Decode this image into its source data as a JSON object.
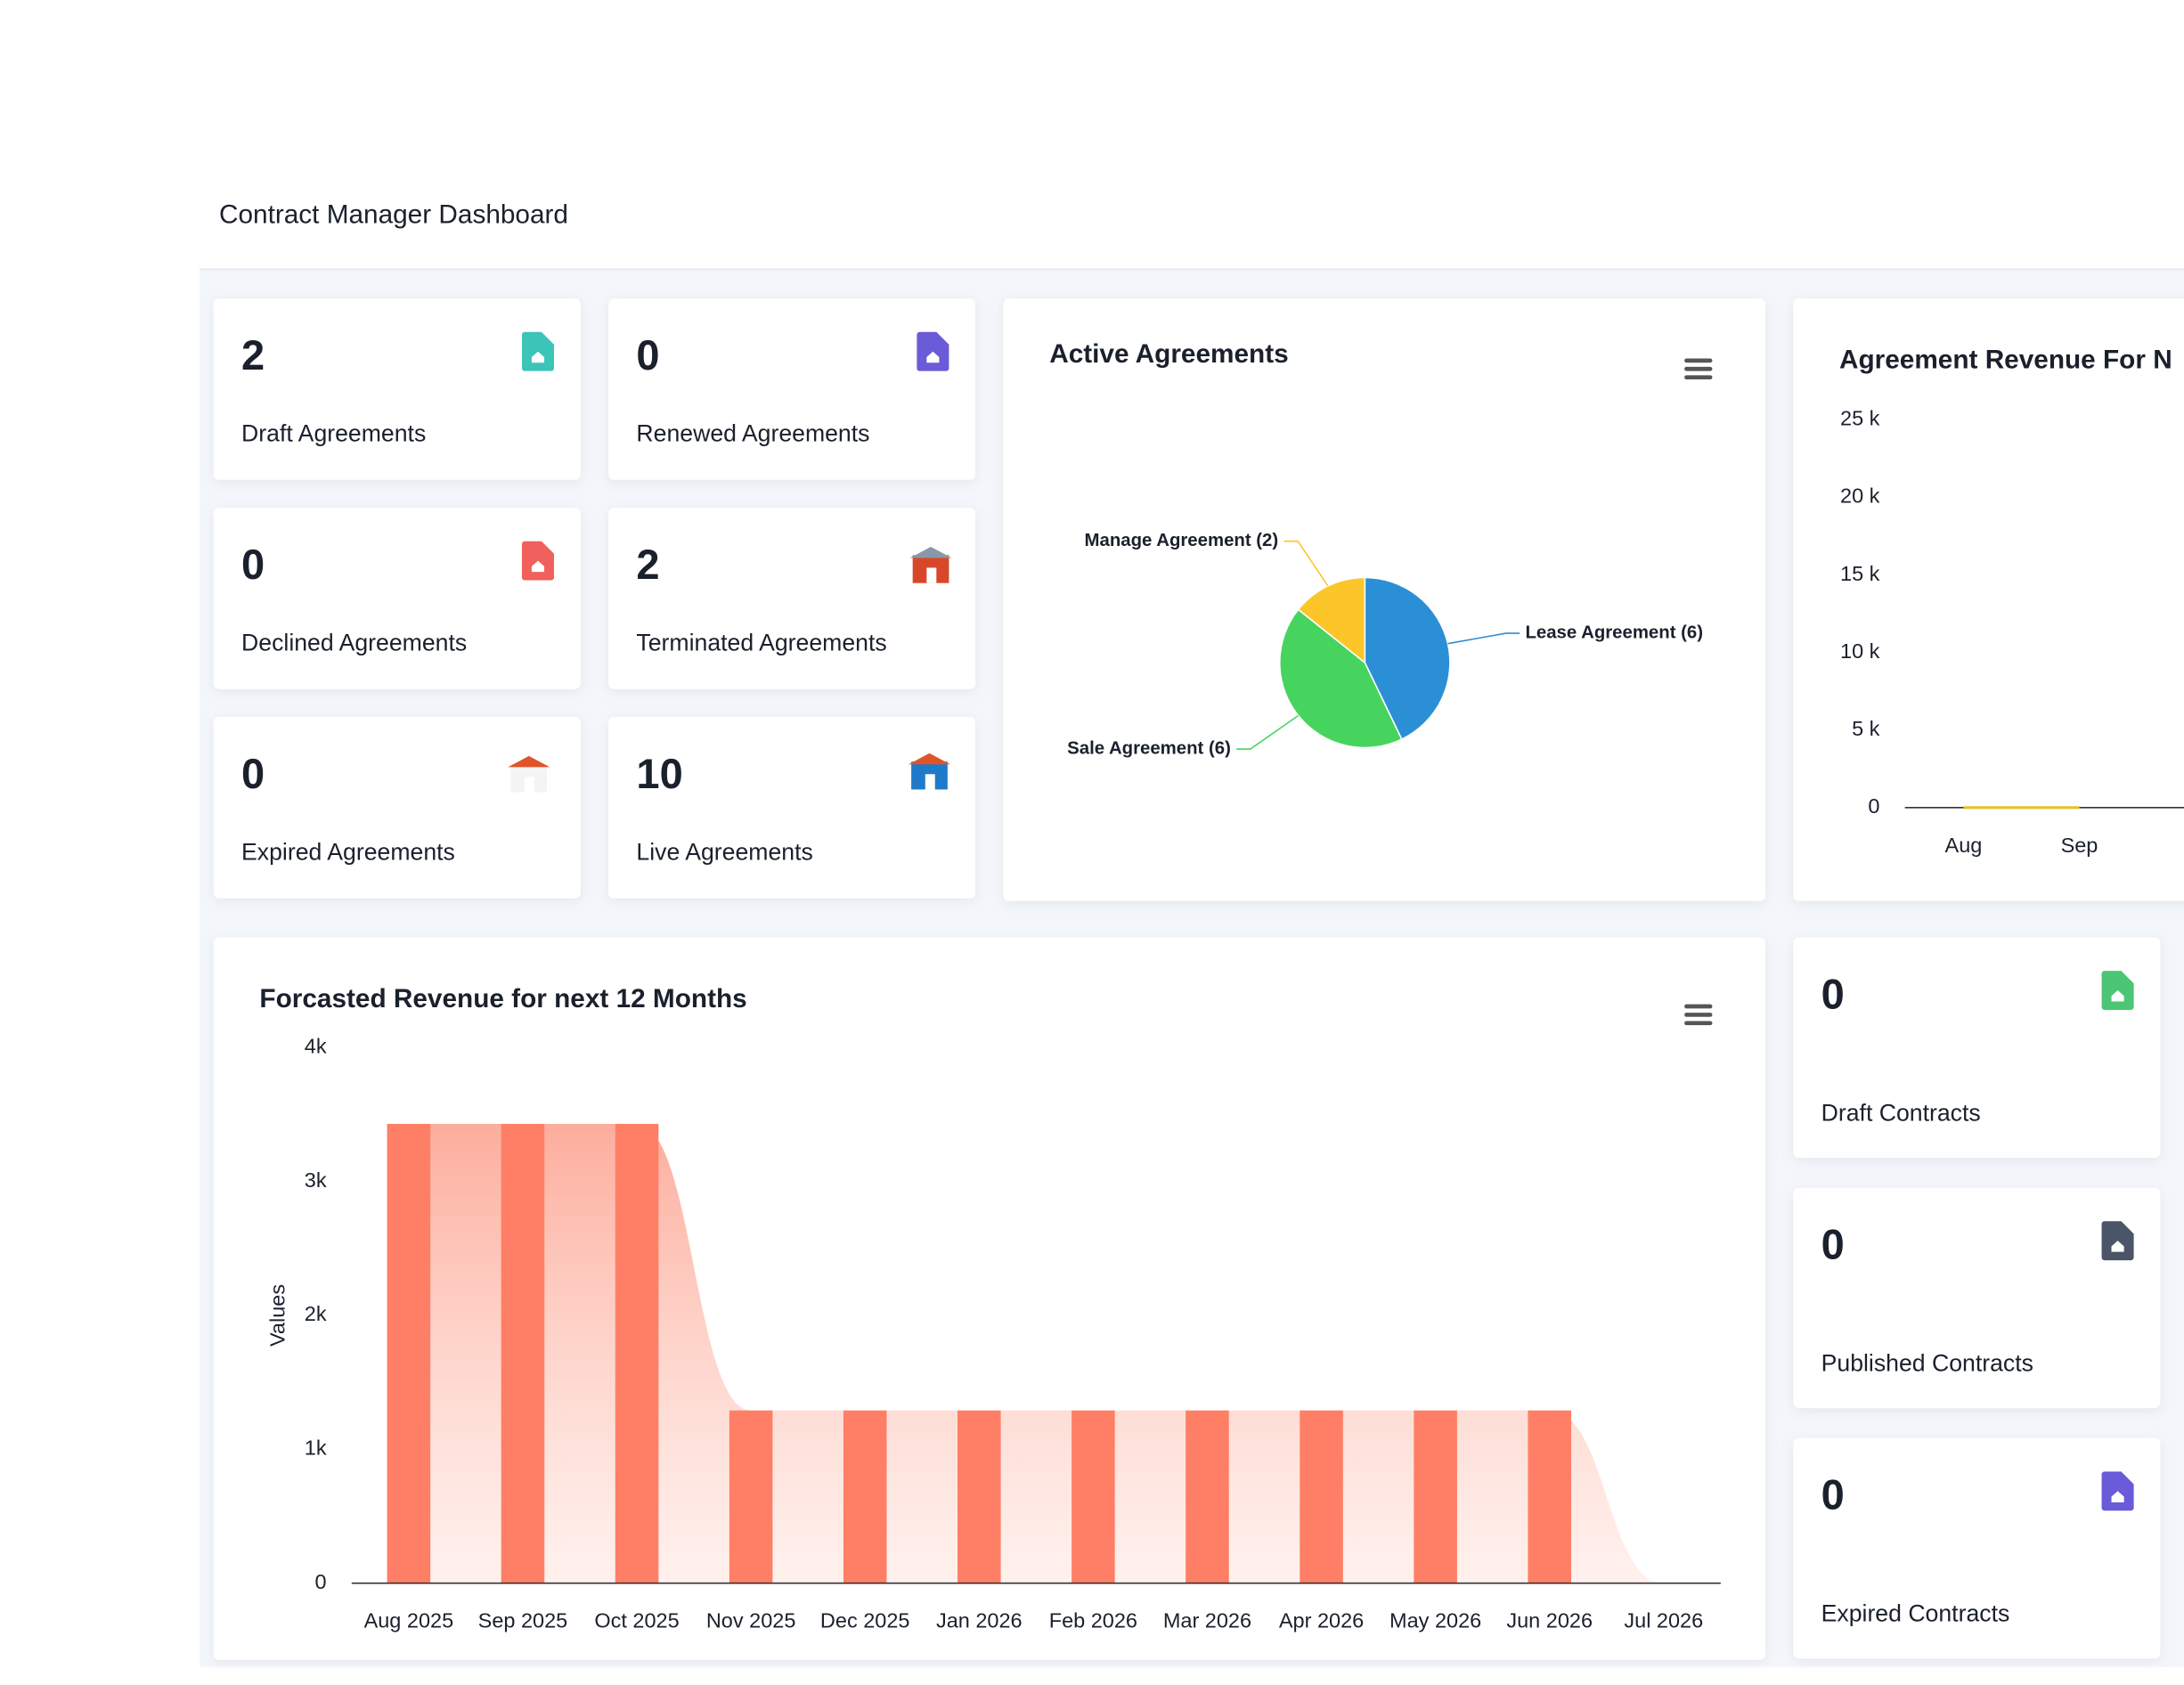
{
  "header": {
    "title": "Contract Manager Dashboard"
  },
  "agreement_cards": [
    {
      "value": 2,
      "label": "Draft Agreements"
    },
    {
      "value": 0,
      "label": "Renewed Agreements"
    },
    {
      "value": 0,
      "label": "Declined Agreements"
    },
    {
      "value": 2,
      "label": "Terminated Agreements"
    },
    {
      "value": 0,
      "label": "Expired Agreements"
    },
    {
      "value": 10,
      "label": "Live Agreements"
    }
  ],
  "contract_cards": [
    {
      "value": 0,
      "label": "Draft Contracts"
    },
    {
      "value": 0,
      "label": "Published Contracts"
    },
    {
      "value": 0,
      "label": "Expired Contracts"
    }
  ],
  "chart_data": [
    {
      "type": "pie",
      "title": "Active Agreements",
      "categories": [
        "Lease Agreement",
        "Sale Agreement",
        "Manage Agreement"
      ],
      "values": [
        6,
        6,
        2
      ],
      "value_labels": [
        "Lease Agreement (6)",
        "Sale Agreement (6)",
        "Manage Agreement (2)"
      ],
      "colors": [
        "#2b8fd6",
        "#47d45e",
        "#fcc52a"
      ]
    },
    {
      "type": "line",
      "title": "Agreement Revenue For N",
      "categories": [
        "Aug",
        "Sep"
      ],
      "series": [
        {
          "color": "#e6c229",
          "values": [
            0,
            0
          ]
        }
      ],
      "ylim": [
        0,
        25000
      ],
      "yticks": [
        {
          "value": 0,
          "label": "0"
        },
        {
          "value": 5000,
          "label": "5 k"
        },
        {
          "value": 10000,
          "label": "10 k"
        },
        {
          "value": 15000,
          "label": "15 k"
        },
        {
          "value": 20000,
          "label": "20 k"
        },
        {
          "value": 25000,
          "label": "25 k"
        }
      ]
    },
    {
      "type": "bar",
      "title": "Forcasted Revenue for next 12 Months",
      "y_label": "Values",
      "categories": [
        "Aug 2025",
        "Sep 2025",
        "Oct 2025",
        "Nov 2025",
        "Dec 2025",
        "Jan 2026",
        "Feb 2026",
        "Mar 2026",
        "Apr 2026",
        "May 2026",
        "Jun 2026",
        "Jul 2026"
      ],
      "values": [
        3430,
        3430,
        3430,
        1290,
        1290,
        1290,
        1290,
        1290,
        1290,
        1290,
        1290,
        0
      ],
      "color": "#ff7f66",
      "area": true,
      "ylim": [
        0,
        4000
      ],
      "yticks": [
        0,
        {
          "value": 1000,
          "label": "1k"
        },
        {
          "value": 2000,
          "label": "2k"
        },
        {
          "value": 3000,
          "label": "3k"
        },
        {
          "value": 4000,
          "label": "4k"
        }
      ]
    }
  ]
}
